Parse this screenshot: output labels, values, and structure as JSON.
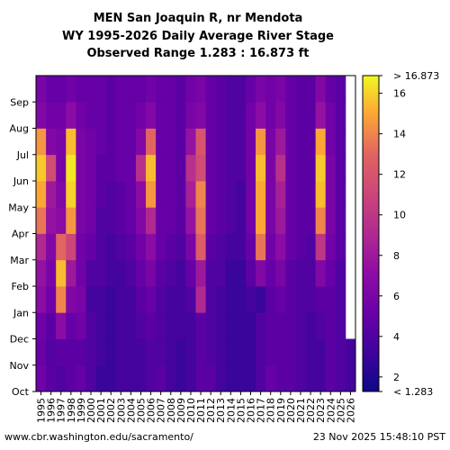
{
  "chart_data": {
    "type": "heatmap",
    "title_lines": [
      "MEN San Joaquin R, nr Mendota",
      "WY 1995-2026 Daily Average River Stage",
      "Observed Range 1.283 : 16.873 ft"
    ],
    "x_categories": [
      "1995",
      "1996",
      "1997",
      "1998",
      "1999",
      "2000",
      "2001",
      "2002",
      "2003",
      "2004",
      "2005",
      "2006",
      "2007",
      "2008",
      "2009",
      "2010",
      "2011",
      "2012",
      "2013",
      "2014",
      "2015",
      "2016",
      "2017",
      "2018",
      "2019",
      "2020",
      "2021",
      "2022",
      "2023",
      "2024",
      "2025",
      "2026"
    ],
    "y_categories": [
      "Oct",
      "Nov",
      "Dec",
      "Jan",
      "Feb",
      "Mar",
      "Apr",
      "May",
      "Jun",
      "Jul",
      "Aug",
      "Sep"
    ],
    "colorbar": {
      "min": 1.283,
      "max": 16.873,
      "ticks": [
        2,
        4,
        6,
        8,
        10,
        12,
        14,
        16
      ],
      "top_label": "> 16.873",
      "bottom_label": "< 1.283",
      "colormap": "plasma"
    },
    "year_profiles": [
      {
        "year": "1995",
        "values": [
          5.5,
          5.2,
          5.4,
          7.0,
          7.5,
          9.0,
          13.5,
          15.0,
          15.8,
          14.5,
          6.5,
          6.0
        ]
      },
      {
        "year": "1996",
        "values": [
          4.5,
          4.2,
          4.5,
          5.5,
          6.0,
          6.5,
          7.5,
          8.0,
          11.5,
          6.5,
          5.5,
          5.0
        ]
      },
      {
        "year": "1997",
        "values": [
          4.0,
          4.5,
          7.0,
          14.0,
          15.5,
          13.0,
          7.0,
          6.5,
          6.0,
          6.0,
          5.5,
          5.0
        ]
      },
      {
        "year": "1998",
        "values": [
          4.5,
          4.5,
          5.0,
          6.5,
          8.0,
          11.0,
          14.5,
          16.0,
          16.5,
          15.5,
          7.0,
          5.5
        ]
      },
      {
        "year": "1999",
        "values": [
          5.0,
          4.5,
          5.5,
          6.0,
          5.5,
          5.5,
          6.0,
          6.0,
          6.0,
          6.0,
          5.5,
          5.0
        ]
      },
      {
        "year": "2000",
        "values": [
          4.0,
          4.0,
          4.0,
          3.5,
          4.0,
          5.0,
          5.5,
          5.5,
          5.5,
          5.5,
          5.0,
          5.0
        ]
      },
      {
        "year": "2001",
        "values": [
          3.0,
          3.5,
          3.5,
          3.5,
          4.0,
          4.0,
          4.0,
          4.5,
          4.5,
          5.0,
          5.0,
          5.0
        ]
      },
      {
        "year": "2002",
        "values": [
          3.0,
          3.0,
          3.0,
          3.0,
          3.5,
          3.5,
          4.0,
          4.0,
          4.5,
          4.5,
          4.5,
          4.5
        ]
      },
      {
        "year": "2003",
        "values": [
          3.5,
          3.5,
          3.5,
          3.5,
          3.5,
          4.0,
          4.5,
          4.5,
          5.0,
          5.0,
          5.0,
          5.0
        ]
      },
      {
        "year": "2004",
        "values": [
          3.5,
          3.5,
          3.5,
          3.5,
          4.0,
          4.5,
          5.0,
          5.0,
          5.0,
          5.0,
          5.0,
          5.0
        ]
      },
      {
        "year": "2005",
        "values": [
          3.5,
          3.5,
          4.0,
          4.5,
          5.0,
          5.5,
          6.5,
          7.0,
          9.5,
          6.5,
          5.5,
          5.0
        ]
      },
      {
        "year": "2006",
        "values": [
          4.0,
          4.0,
          4.5,
          5.0,
          6.0,
          7.0,
          9.0,
          14.5,
          15.5,
          13.0,
          6.5,
          5.5
        ]
      },
      {
        "year": "2007",
        "values": [
          4.5,
          4.0,
          4.0,
          4.0,
          4.5,
          5.0,
          5.0,
          5.0,
          5.0,
          5.0,
          5.0,
          5.0
        ]
      },
      {
        "year": "2008",
        "values": [
          3.5,
          3.5,
          3.5,
          3.5,
          4.0,
          4.5,
          5.0,
          5.0,
          5.0,
          5.0,
          5.0,
          5.0
        ]
      },
      {
        "year": "2009",
        "values": [
          3.0,
          3.0,
          3.5,
          3.5,
          3.5,
          4.0,
          4.5,
          4.5,
          4.5,
          4.5,
          4.5,
          4.5
        ]
      },
      {
        "year": "2010",
        "values": [
          3.5,
          3.5,
          3.5,
          4.0,
          5.0,
          6.0,
          7.5,
          8.5,
          9.5,
          7.5,
          6.0,
          5.5
        ]
      },
      {
        "year": "2011",
        "values": [
          4.5,
          4.5,
          4.5,
          9.0,
          8.0,
          12.5,
          13.5,
          14.0,
          11.5,
          12.0,
          6.5,
          6.0
        ]
      },
      {
        "year": "2012",
        "values": [
          4.5,
          4.0,
          4.0,
          4.0,
          4.0,
          4.5,
          5.0,
          5.0,
          5.0,
          5.0,
          5.0,
          5.0
        ]
      },
      {
        "year": "2013",
        "values": [
          3.5,
          3.5,
          3.5,
          3.5,
          4.0,
          4.0,
          4.5,
          4.5,
          4.5,
          4.5,
          4.5,
          4.5
        ]
      },
      {
        "year": "2014",
        "values": [
          3.0,
          3.0,
          3.0,
          3.0,
          3.0,
          3.5,
          4.0,
          4.0,
          4.0,
          4.0,
          4.0,
          4.0
        ]
      },
      {
        "year": "2015",
        "values": [
          3.0,
          3.0,
          3.0,
          3.0,
          3.0,
          3.5,
          3.5,
          3.5,
          4.0,
          4.0,
          4.0,
          4.0
        ]
      },
      {
        "year": "2016",
        "values": [
          3.0,
          3.0,
          3.0,
          3.5,
          4.5,
          5.0,
          5.5,
          5.5,
          5.5,
          5.5,
          5.5,
          5.0
        ]
      },
      {
        "year": "2017",
        "values": [
          4.0,
          4.0,
          4.0,
          3.0,
          6.5,
          13.5,
          15.0,
          15.0,
          15.5,
          14.5,
          7.0,
          6.0
        ]
      },
      {
        "year": "2018",
        "values": [
          5.0,
          4.5,
          4.5,
          4.5,
          5.0,
          5.5,
          6.0,
          6.0,
          6.0,
          6.0,
          5.5,
          5.5
        ]
      },
      {
        "year": "2019",
        "values": [
          4.5,
          4.5,
          4.5,
          5.0,
          6.0,
          7.0,
          8.0,
          8.5,
          9.5,
          8.0,
          6.5,
          6.0
        ]
      },
      {
        "year": "2020",
        "values": [
          4.5,
          4.5,
          4.5,
          4.5,
          4.5,
          5.0,
          5.0,
          5.0,
          5.0,
          5.0,
          5.0,
          5.0
        ]
      },
      {
        "year": "2021",
        "values": [
          4.0,
          4.0,
          4.0,
          4.0,
          4.0,
          4.5,
          4.5,
          4.5,
          4.5,
          4.5,
          4.5,
          4.5
        ]
      },
      {
        "year": "2022",
        "values": [
          3.5,
          3.5,
          3.5,
          4.0,
          4.0,
          4.0,
          4.5,
          4.5,
          4.5,
          4.5,
          4.5,
          4.5
        ]
      },
      {
        "year": "2023",
        "values": [
          3.5,
          3.5,
          4.0,
          4.5,
          6.5,
          10.0,
          14.0,
          15.5,
          15.8,
          15.0,
          7.5,
          6.5
        ]
      },
      {
        "year": "2024",
        "values": [
          4.5,
          4.5,
          4.5,
          4.5,
          5.0,
          5.5,
          6.0,
          6.0,
          6.0,
          5.5,
          5.5,
          5.0
        ]
      },
      {
        "year": "2025",
        "values": [
          4.0,
          4.0,
          4.0,
          4.0,
          4.0,
          4.5,
          4.5,
          4.5,
          4.5,
          4.5,
          4.5,
          4.5
        ]
      },
      {
        "year": "2026",
        "values": [
          3.5,
          3.5,
          null,
          null,
          null,
          null,
          null,
          null,
          null,
          null,
          null,
          null
        ]
      }
    ]
  },
  "footer": {
    "source_url": "www.cbr.washington.edu/sacramento/",
    "generated": "23 Nov 2025 15:48:10 PST"
  }
}
